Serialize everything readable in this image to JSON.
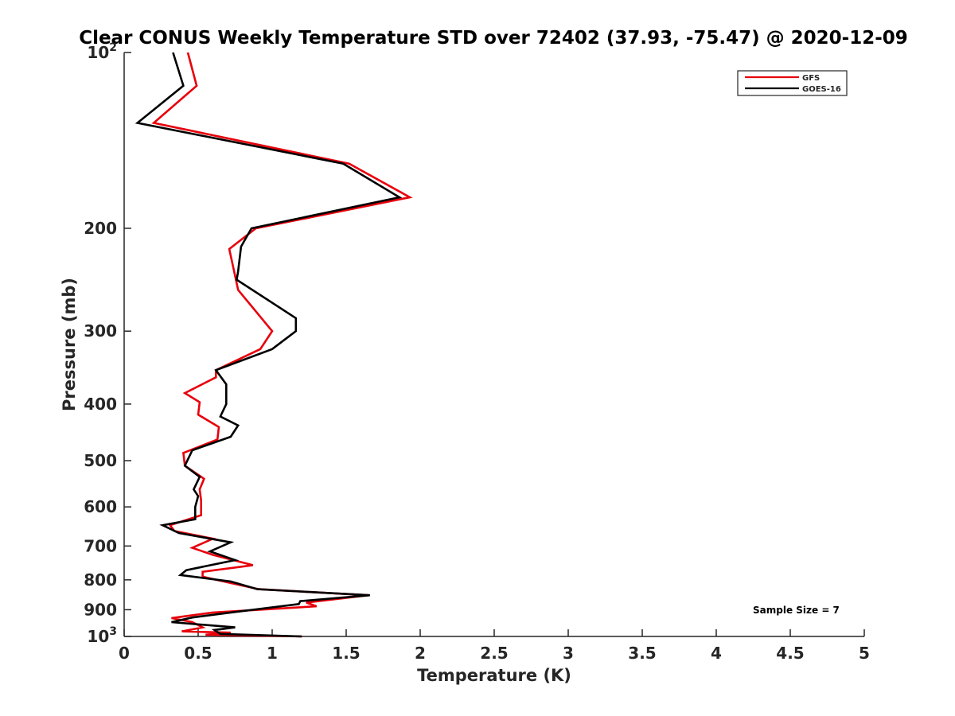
{
  "chart_data": {
    "type": "line",
    "title": "Clear CONUS Weekly Temperature STD over 72402 (37.93, -75.47) @ 2020-12-09",
    "xlabel": "Temperature (K)",
    "ylabel": "Pressure (mb)",
    "xlim": [
      0,
      5
    ],
    "ylim": [
      100,
      1000
    ],
    "y_scale": "log",
    "y_reversed": true,
    "x_ticks": [
      "0",
      "0.5",
      "1",
      "1.5",
      "2",
      "2.5",
      "3",
      "3.5",
      "4",
      "4.5",
      "5"
    ],
    "x_tick_values": [
      0,
      0.5,
      1,
      1.5,
      2,
      2.5,
      3,
      3.5,
      4,
      4.5,
      5
    ],
    "y_ticks": [
      {
        "value": 100,
        "base": "10",
        "exp": "2"
      },
      {
        "value": 200,
        "label": "200"
      },
      {
        "value": 300,
        "label": "300"
      },
      {
        "value": 400,
        "label": "400"
      },
      {
        "value": 500,
        "label": "500"
      },
      {
        "value": 600,
        "label": "600"
      },
      {
        "value": 700,
        "label": "700"
      },
      {
        "value": 800,
        "label": "800"
      },
      {
        "value": 900,
        "label": "900"
      },
      {
        "value": 1000,
        "base": "10",
        "exp": "3"
      }
    ],
    "grid": false,
    "legend_position": "top-right",
    "annotation": "Sample Size = 7",
    "series": [
      {
        "name": "GFS",
        "color": "#e8000b",
        "points": [
          [
            0.43,
            100
          ],
          [
            0.49,
            114
          ],
          [
            0.2,
            132
          ],
          [
            1.52,
            155
          ],
          [
            1.93,
            177
          ],
          [
            0.89,
            200
          ],
          [
            0.71,
            217
          ],
          [
            0.74,
            235
          ],
          [
            0.77,
            255
          ],
          [
            1.0,
            300
          ],
          [
            0.92,
            322
          ],
          [
            0.62,
            350
          ],
          [
            0.62,
            360
          ],
          [
            0.41,
            383
          ],
          [
            0.51,
            397
          ],
          [
            0.5,
            417
          ],
          [
            0.64,
            438
          ],
          [
            0.63,
            460
          ],
          [
            0.4,
            485
          ],
          [
            0.41,
            510
          ],
          [
            0.54,
            537
          ],
          [
            0.51,
            560
          ],
          [
            0.52,
            585
          ],
          [
            0.52,
            620
          ],
          [
            0.31,
            645
          ],
          [
            0.34,
            660
          ],
          [
            0.6,
            680
          ],
          [
            0.46,
            705
          ],
          [
            0.6,
            725
          ],
          [
            0.87,
            755
          ],
          [
            0.53,
            775
          ],
          [
            0.53,
            790
          ],
          [
            0.72,
            810
          ],
          [
            0.91,
            830
          ],
          [
            1.65,
            850
          ],
          [
            1.23,
            875
          ],
          [
            1.3,
            888
          ],
          [
            0.6,
            910
          ],
          [
            0.32,
            930
          ],
          [
            0.46,
            945
          ],
          [
            0.53,
            965
          ],
          [
            0.39,
            980
          ],
          [
            0.72,
            985
          ],
          [
            0.55,
            993
          ],
          [
            1.2,
            1000
          ]
        ]
      },
      {
        "name": "GOES-16",
        "color": "#000000",
        "points": [
          [
            0.33,
            100
          ],
          [
            0.4,
            114
          ],
          [
            0.09,
            132
          ],
          [
            1.48,
            155
          ],
          [
            1.86,
            177
          ],
          [
            0.86,
            200
          ],
          [
            0.79,
            215
          ],
          [
            0.77,
            237
          ],
          [
            0.76,
            245
          ],
          [
            1.16,
            285
          ],
          [
            1.16,
            300
          ],
          [
            1.0,
            322
          ],
          [
            0.62,
            350
          ],
          [
            0.69,
            370
          ],
          [
            0.69,
            400
          ],
          [
            0.65,
            420
          ],
          [
            0.77,
            435
          ],
          [
            0.72,
            455
          ],
          [
            0.46,
            480
          ],
          [
            0.41,
            510
          ],
          [
            0.51,
            533
          ],
          [
            0.47,
            560
          ],
          [
            0.5,
            575
          ],
          [
            0.48,
            600
          ],
          [
            0.48,
            630
          ],
          [
            0.26,
            645
          ],
          [
            0.37,
            665
          ],
          [
            0.72,
            690
          ],
          [
            0.58,
            715
          ],
          [
            0.75,
            740
          ],
          [
            0.42,
            770
          ],
          [
            0.38,
            785
          ],
          [
            0.72,
            805
          ],
          [
            0.9,
            830
          ],
          [
            1.66,
            850
          ],
          [
            1.19,
            870
          ],
          [
            1.18,
            880
          ],
          [
            0.72,
            910
          ],
          [
            0.46,
            928
          ],
          [
            0.32,
            945
          ],
          [
            0.75,
            965
          ],
          [
            0.61,
            975
          ],
          [
            0.65,
            990
          ],
          [
            1.2,
            1000
          ]
        ]
      }
    ]
  }
}
